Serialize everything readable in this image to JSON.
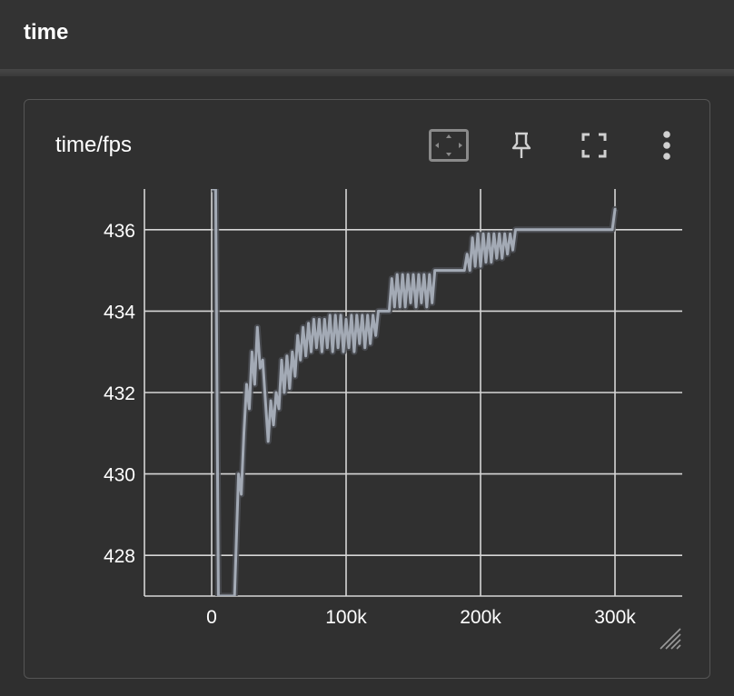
{
  "header": {
    "title": "time"
  },
  "card": {
    "title": "time/fps",
    "toolbar": {
      "fit_icon": "fit-domain-icon",
      "pin_icon": "pin-icon",
      "fullscreen_icon": "fullscreen-icon",
      "more_icon": "more-vert-icon"
    }
  },
  "colors": {
    "page_bg": "#2f2f2f",
    "card_bg": "#303030",
    "grid": "#d6d6d6",
    "series_smoothed": "#a3aab5",
    "series_raw": "#4a4d52",
    "text": "#ffffff"
  },
  "chart_data": {
    "type": "line",
    "title": "time/fps",
    "xlabel": "",
    "ylabel": "",
    "xlim": [
      -50000,
      350000
    ],
    "ylim": [
      427,
      437
    ],
    "xticks": [
      0,
      100000,
      200000,
      300000
    ],
    "xtick_labels": [
      "0",
      "100k",
      "200k",
      "300k"
    ],
    "yticks": [
      428,
      430,
      432,
      434,
      436
    ],
    "ytick_labels": [
      "428",
      "430",
      "432",
      "434",
      "436"
    ],
    "grid": true,
    "legend": "none",
    "series": [
      {
        "x": [
          0,
          3000,
          5000,
          14000,
          17000,
          20000,
          22000,
          24000,
          26000,
          28000,
          30000,
          32000,
          34000,
          36000,
          38000,
          40000,
          42000,
          44000,
          46000,
          48000,
          50000,
          52000,
          54000,
          56000,
          58000,
          60000,
          62000,
          64000,
          66000,
          68000,
          70000,
          72000,
          74000,
          76000,
          78000,
          80000,
          82000,
          84000,
          86000,
          88000,
          90000,
          92000,
          94000,
          96000,
          98000,
          100000,
          102000,
          104000,
          106000,
          108000,
          110000,
          112000,
          114000,
          116000,
          118000,
          120000,
          122000,
          124000,
          126000,
          128000,
          130000,
          132000,
          134000,
          136000,
          138000,
          140000,
          142000,
          144000,
          146000,
          148000,
          150000,
          152000,
          154000,
          156000,
          158000,
          160000,
          162000,
          164000,
          166000,
          170000,
          180000,
          188000,
          190000,
          192000,
          194000,
          196000,
          198000,
          200000,
          202000,
          204000,
          206000,
          208000,
          210000,
          212000,
          214000,
          216000,
          218000,
          220000,
          222000,
          224000,
          226000,
          240000,
          260000,
          280000,
          298000,
          300000,
          301000
        ],
        "y": [
          437,
          437,
          427,
          427,
          427,
          430,
          429.5,
          431,
          432.2,
          431.6,
          433.0,
          432.2,
          433.6,
          432.6,
          432.8,
          431.8,
          430.8,
          431.8,
          431.2,
          432.0,
          431.6,
          432.8,
          432.0,
          432.9,
          432.1,
          433.0,
          432.4,
          433.4,
          432.8,
          433.6,
          432.9,
          433.7,
          433.0,
          433.8,
          433.1,
          433.8,
          433.0,
          433.8,
          433.1,
          433.9,
          433.0,
          433.9,
          433.1,
          433.9,
          433.0,
          433.8,
          433.1,
          433.9,
          433.0,
          433.9,
          433.2,
          433.9,
          433.1,
          433.9,
          433.2,
          433.9,
          433.4,
          434.0,
          434.0,
          434.0,
          434.0,
          434.0,
          434.8,
          434.1,
          434.9,
          434.1,
          434.9,
          434.1,
          434.9,
          434.2,
          434.9,
          434.1,
          434.9,
          434.2,
          434.9,
          434.1,
          434.9,
          434.2,
          435.0,
          435.0,
          435.0,
          435.0,
          435.4,
          435.0,
          435.8,
          435.1,
          435.9,
          435.1,
          435.9,
          435.2,
          435.9,
          435.2,
          435.9,
          435.3,
          435.9,
          435.3,
          435.9,
          435.4,
          435.9,
          435.5,
          436.0,
          436.0,
          436.0,
          436.0,
          436.0,
          436.5,
          436.5
        ]
      }
    ]
  }
}
